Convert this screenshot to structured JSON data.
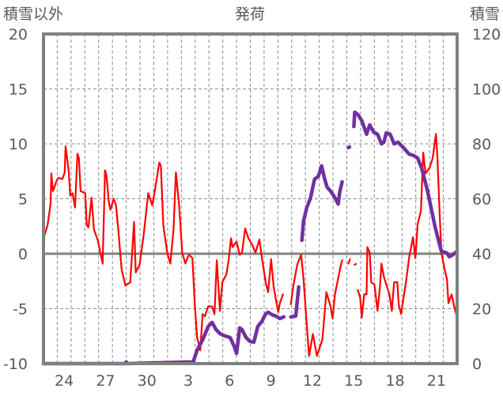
{
  "chart_data": {
    "type": "line",
    "title": "発荷",
    "ylabel_left": "積雪以外",
    "ylabel_right": "積雪",
    "ylim_left": [
      -10,
      20
    ],
    "ylim_right": [
      0,
      120
    ],
    "yticks_left": [
      -10,
      -5,
      0,
      5,
      10,
      15,
      20
    ],
    "yticks_right": [
      0,
      20,
      40,
      60,
      80,
      100,
      120
    ],
    "xlim_days": [
      0,
      30
    ],
    "x_unit": "days since 23rd (first month has 30 days)",
    "xticks": [
      {
        "day": 1.5,
        "label": "24"
      },
      {
        "day": 4.5,
        "label": "27"
      },
      {
        "day": 7.5,
        "label": "30"
      },
      {
        "day": 10.5,
        "label": "3"
      },
      {
        "day": 13.5,
        "label": "6"
      },
      {
        "day": 16.5,
        "label": "9"
      },
      {
        "day": 19.5,
        "label": "12"
      },
      {
        "day": 22.5,
        "label": "15"
      },
      {
        "day": 25.5,
        "label": "18"
      },
      {
        "day": 28.5,
        "label": "21"
      }
    ],
    "grid": true,
    "series": [
      {
        "name": "積雪以外",
        "axis": "left",
        "color": "#ff0000",
        "x": [
          0,
          0.29,
          0.51,
          0.57,
          0.69,
          0.97,
          1.09,
          1.37,
          1.54,
          1.6,
          1.83,
          1.94,
          2.11,
          2.29,
          2.46,
          2.57,
          2.69,
          3.03,
          3.14,
          3.26,
          3.49,
          3.66,
          3.94,
          4.29,
          4.46,
          4.57,
          4.74,
          4.86,
          5.09,
          5.26,
          5.43,
          5.66,
          5.94,
          6.29,
          6.57,
          6.69,
          6.97,
          7.26,
          7.6,
          7.89,
          8.11,
          8.4,
          8.51,
          8.69,
          8.97,
          9.2,
          9.43,
          9.6,
          9.83,
          10.06,
          10.29,
          10.46,
          10.57,
          10.8,
          10.97,
          11.14,
          11.37,
          11.54,
          11.71,
          11.94,
          12.23,
          12.4,
          12.57,
          12.8,
          12.97,
          13.26,
          13.43,
          13.6,
          13.71,
          14,
          14.23,
          14.4,
          14.63,
          14.86,
          15.14,
          15.37,
          15.66,
          15.83,
          16.11,
          16.29,
          16.51,
          16.69,
          16.86,
          17.03,
          17.14,
          17.37,
          17.6,
          17.94,
          18.11,
          18.4,
          18.69,
          18.86,
          19.09,
          19.26,
          19.54,
          19.83,
          20.23,
          20.51,
          20.8,
          20.97,
          21.14,
          21.54,
          21.66,
          21.9,
          22.11,
          22.23,
          22.4,
          22.57,
          22.7,
          22.8,
          22.97,
          23.09,
          23.26,
          23.43,
          23.49,
          23.66,
          23.77,
          24,
          24.23,
          24.4,
          24.51,
          24.69,
          24.86,
          25.09,
          25.26,
          25.43,
          25.66,
          25.77,
          25.94,
          26.11,
          26.29,
          26.51,
          26.8,
          26.97,
          27.14,
          27.37,
          27.54,
          27.71,
          28,
          28.23,
          28.46,
          28.57,
          28.74,
          28.86,
          29.09,
          29.26,
          29.37,
          29.6,
          29.77,
          30
        ],
        "values": [
          1.4,
          2.6,
          4.5,
          7.3,
          5.7,
          6.7,
          6.9,
          6.8,
          7.4,
          9.8,
          7.5,
          5.3,
          5.5,
          4.2,
          9.1,
          8.7,
          5.7,
          5.5,
          2.6,
          2.4,
          5.1,
          2.2,
          1.2,
          -0.9,
          7.6,
          7.1,
          4.7,
          4.0,
          5.0,
          4.4,
          2.1,
          -1.4,
          -2.9,
          -2.6,
          2.9,
          -1.7,
          -1.0,
          1.7,
          5.5,
          4.4,
          6.0,
          8.3,
          8.0,
          2.6,
          0.1,
          -0.9,
          2.2,
          7.4,
          4.5,
          0.1,
          -0.9,
          -0.3,
          -0.1,
          -0.4,
          -4.5,
          -7.6,
          -8.8,
          -5.5,
          -5.7,
          -4.8,
          -4.8,
          -5.5,
          -0.6,
          -5.2,
          -2.6,
          -1.9,
          -0.6,
          1.4,
          0.6,
          1.1,
          -0.1,
          0.1,
          2.3,
          1.4,
          0.8,
          0.1,
          1.3,
          -0.3,
          -2.6,
          -3.5,
          -0.5,
          -3.0,
          -4.2,
          -5.3,
          -4.5,
          -3.7,
          null,
          -4.6,
          -3.0,
          -1.0,
          -0.1,
          -2.3,
          -6.4,
          -9.3,
          -7.3,
          -9.3,
          -7.8,
          -3.5,
          -4.7,
          -5.9,
          -3.7,
          -1.2,
          -0.6,
          null,
          -0.9,
          -0.5,
          null,
          -1.0,
          null,
          -3.3,
          -4.0,
          -5.8,
          -3.7,
          -3.7,
          0.6,
          0.1,
          -2.6,
          -2.8,
          -5.2,
          -3.0,
          -0.9,
          -2.1,
          -2.8,
          -3.7,
          -5.2,
          -2.6,
          -2.6,
          -4.7,
          -5.5,
          -4.0,
          -2.6,
          -0.4,
          1.5,
          -0.4,
          2.7,
          3.9,
          9.2,
          7.3,
          7.8,
          8.7,
          10.9,
          8.7,
          3.5,
          0.1,
          -1.4,
          -2.3,
          -4.5,
          -3.7,
          -4.7,
          -5.8
        ]
      },
      {
        "name": "積雪",
        "axis": "right",
        "color": "#7030a0",
        "x": [
          0,
          5.9,
          6.0,
          6.1,
          10.86,
          11.14,
          11.54,
          11.94,
          12.23,
          12.51,
          12.8,
          13.14,
          13.54,
          13.83,
          14,
          14.23,
          14.4,
          14.69,
          14.97,
          15.26,
          15.54,
          15.83,
          16.11,
          16.29,
          16.57,
          16.86,
          17.14,
          17.43,
          17.6,
          17.94,
          18.29,
          18.51,
          18.6,
          18.74,
          18.86,
          19.09,
          19.37,
          19.66,
          19.94,
          20.17,
          20.4,
          20.57,
          20.86,
          21.14,
          21.37,
          21.49,
          21.66,
          21.9,
          22.11,
          22.2,
          22.51,
          22.57,
          22.8,
          23.09,
          23.43,
          23.66,
          23.94,
          24.23,
          24.51,
          24.69,
          24.86,
          25.14,
          25.43,
          25.71,
          26.11,
          26.51,
          26.86,
          27.14,
          27.43,
          27.83,
          28.11,
          28.4,
          28.69,
          28.86,
          29.26,
          29.43,
          29.71,
          30
        ],
        "values": [
          0,
          0,
          0.6,
          0,
          0.6,
          4.9,
          8.6,
          13.5,
          15.0,
          12.4,
          10.9,
          10.1,
          9.5,
          6.3,
          3.7,
          13.0,
          12.4,
          9.5,
          8.1,
          7.8,
          13.5,
          15.3,
          18.1,
          18.7,
          17.8,
          17.3,
          16.4,
          17.0,
          null,
          17.0,
          17.3,
          27.9,
          null,
          44.9,
          51.8,
          56.7,
          60.4,
          67.1,
          68.2,
          72.0,
          67.1,
          64.2,
          62.5,
          60.4,
          58.1,
          62.5,
          66.2,
          null,
          78.6,
          null,
          86.3,
          91.5,
          90.7,
          88.4,
          83.5,
          86.9,
          84.3,
          83.5,
          80.0,
          80.6,
          84.0,
          83.5,
          80.0,
          80.6,
          78.6,
          76.3,
          75.7,
          74.8,
          71.1,
          63.3,
          56.7,
          49.8,
          44.0,
          40.9,
          40.3,
          38.9,
          39.7,
          40.9
        ]
      }
    ]
  }
}
